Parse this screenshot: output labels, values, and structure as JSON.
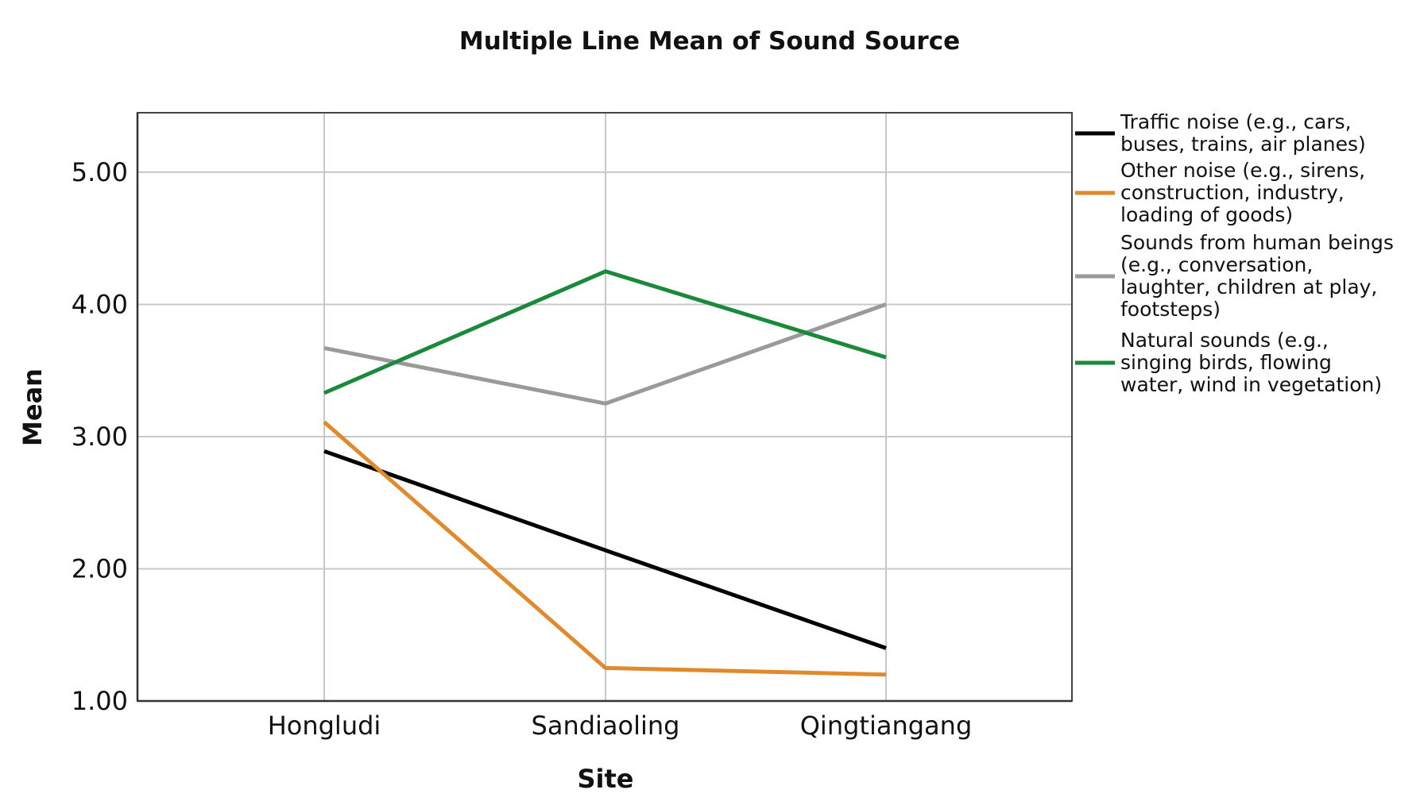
{
  "chart_data": {
    "type": "line",
    "title": "Multiple Line Mean of Sound Source",
    "xlabel": "Site",
    "ylabel": "Mean",
    "categories": [
      "Hongludi",
      "Sandiaoling",
      "Qingtiangang"
    ],
    "ylim": [
      1.0,
      5.45
    ],
    "yticks": [
      1.0,
      2.0,
      3.0,
      4.0,
      5.0
    ],
    "ytick_labels": [
      "1.00",
      "2.00",
      "3.00",
      "4.00",
      "5.00"
    ],
    "grid": true,
    "legend_position": "right",
    "series": [
      {
        "name_lines": [
          "Traffic noise (e.g., cars,",
          "buses, trains, air planes)"
        ],
        "color": "#000000",
        "values": [
          2.89,
          2.14,
          1.4
        ]
      },
      {
        "name_lines": [
          "Other noise (e.g., sirens,",
          "construction, industry,",
          "loading of goods)"
        ],
        "color": "#e08a2e",
        "values": [
          3.11,
          1.25,
          1.2
        ]
      },
      {
        "name_lines": [
          "Sounds from human beings",
          "(e.g., conversation,",
          "laughter, children at play,",
          "footsteps)"
        ],
        "color": "#9a9a9a",
        "values": [
          3.67,
          3.25,
          4.0
        ]
      },
      {
        "name_lines": [
          "Natural sounds (e.g.,",
          "singing birds, flowing",
          "water, wind in vegetation)"
        ],
        "color": "#1a8a3a",
        "values": [
          3.33,
          4.25,
          3.6
        ]
      }
    ]
  }
}
